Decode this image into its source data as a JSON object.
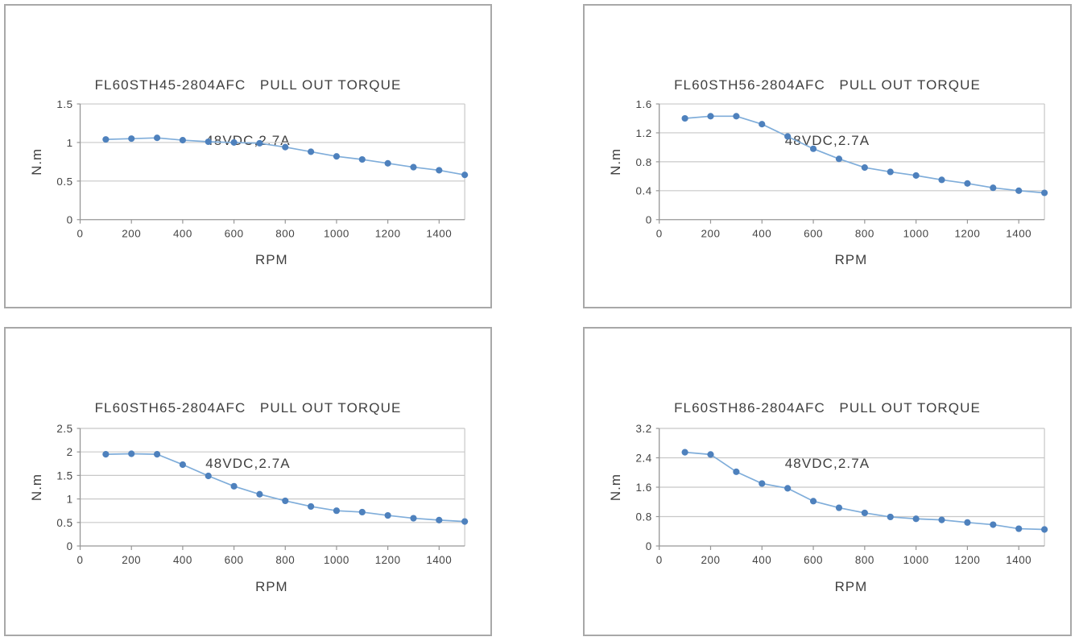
{
  "page": {
    "title": "Pull out torque curves",
    "background": "#ffffff"
  },
  "colors": {
    "marker": "#4e81bd",
    "series_line": "#7fadda",
    "gridline": "#c8c8c8",
    "plot_border": "#c8c8c8",
    "axis_line": "#969696",
    "tick": "#969696",
    "panel_border": "#a8a8a8",
    "text": "#3f3f3f"
  },
  "chart_data": [
    {
      "type": "line",
      "title": "FL60STH45-2804AFC   PULL OUT TORQUE",
      "subtitle": "48VDC,2.7A",
      "xlabel": "RPM",
      "ylabel": "N.m",
      "x": [
        100,
        200,
        300,
        400,
        500,
        600,
        700,
        800,
        900,
        1000,
        1100,
        1200,
        1300,
        1400,
        1500
      ],
      "values": [
        1.04,
        1.05,
        1.06,
        1.03,
        1.01,
        1.0,
        0.99,
        0.94,
        0.88,
        0.82,
        0.78,
        0.73,
        0.68,
        0.64,
        0.58
      ],
      "xlim": [
        0,
        1500
      ],
      "ylim": [
        0,
        1.5
      ],
      "xticks": [
        0,
        200,
        400,
        600,
        800,
        1000,
        1200,
        1400
      ],
      "xtick_labels": [
        "0",
        "200",
        "400",
        "600",
        "800",
        "1000",
        "1200",
        "1400"
      ],
      "ytick_labels": [
        "0",
        "0.5",
        "1",
        "1.5"
      ],
      "grid": true,
      "legend": false
    },
    {
      "type": "line",
      "title": "FL60STH56-2804AFC   PULL OUT TORQUE",
      "subtitle": "48VDC,2.7A",
      "xlabel": "RPM",
      "ylabel": "N.m",
      "x": [
        100,
        200,
        300,
        400,
        500,
        600,
        700,
        800,
        900,
        1000,
        1100,
        1200,
        1300,
        1400,
        1500
      ],
      "values": [
        1.4,
        1.43,
        1.43,
        1.32,
        1.15,
        0.98,
        0.84,
        0.72,
        0.66,
        0.61,
        0.55,
        0.5,
        0.44,
        0.4,
        0.37
      ],
      "xlim": [
        0,
        1500
      ],
      "ylim": [
        0,
        1.6
      ],
      "xticks": [
        0,
        200,
        400,
        600,
        800,
        1000,
        1200,
        1400
      ],
      "xtick_labels": [
        "0",
        "200",
        "400",
        "600",
        "800",
        "1000",
        "1200",
        "1400"
      ],
      "ytick_labels": [
        "0",
        "0.4",
        "0.8",
        "1.2",
        "1.6"
      ],
      "grid": true,
      "legend": false
    },
    {
      "type": "line",
      "title": "FL60STH65-2804AFC   PULL OUT TORQUE",
      "subtitle": "48VDC,2.7A",
      "xlabel": "RPM",
      "ylabel": "N.m",
      "x": [
        100,
        200,
        300,
        400,
        500,
        600,
        700,
        800,
        900,
        1000,
        1100,
        1200,
        1300,
        1400,
        1500
      ],
      "values": [
        1.95,
        1.96,
        1.95,
        1.73,
        1.49,
        1.27,
        1.1,
        0.96,
        0.84,
        0.75,
        0.72,
        0.65,
        0.59,
        0.55,
        0.52
      ],
      "xlim": [
        0,
        1500
      ],
      "ylim": [
        0,
        2.5
      ],
      "xticks": [
        0,
        200,
        400,
        600,
        800,
        1000,
        1200,
        1400
      ],
      "xtick_labels": [
        "0",
        "200",
        "400",
        "600",
        "800",
        "1000",
        "1200",
        "1400"
      ],
      "ytick_labels": [
        "0",
        "0.5",
        "1",
        "1.5",
        "2",
        "2.5"
      ],
      "grid": true,
      "legend": false
    },
    {
      "type": "line",
      "title": "FL60STH86-2804AFC   PULL OUT TORQUE",
      "subtitle": "48VDC,2.7A",
      "xlabel": "RPM",
      "ylabel": "N.m",
      "x": [
        100,
        200,
        300,
        400,
        500,
        600,
        700,
        800,
        900,
        1000,
        1100,
        1200,
        1300,
        1400,
        1500
      ],
      "values": [
        2.55,
        2.49,
        2.02,
        1.7,
        1.57,
        1.22,
        1.04,
        0.9,
        0.79,
        0.74,
        0.71,
        0.64,
        0.58,
        0.47,
        0.45
      ],
      "xlim": [
        0,
        1500
      ],
      "ylim": [
        0,
        3.2
      ],
      "xticks": [
        0,
        200,
        400,
        600,
        800,
        1000,
        1200,
        1400
      ],
      "xtick_labels": [
        "0",
        "200",
        "400",
        "600",
        "800",
        "1000",
        "1200",
        "1400"
      ],
      "ytick_labels": [
        "0",
        "0.8",
        "1.6",
        "2.4",
        "3.2"
      ],
      "grid": true,
      "legend": false
    }
  ]
}
